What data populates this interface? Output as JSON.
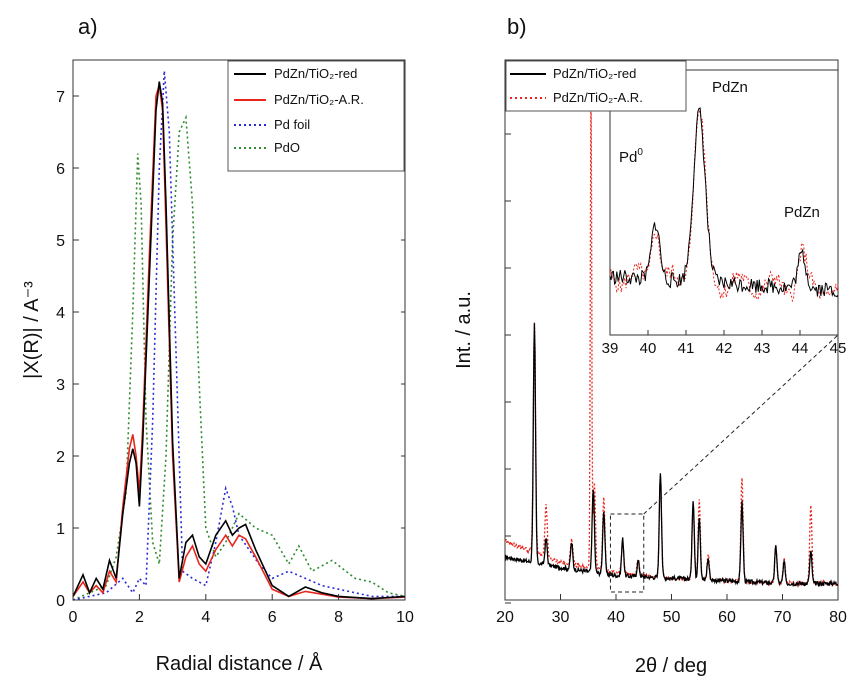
{
  "figure": {
    "panels": [
      {
        "label": "a)"
      },
      {
        "label": "b)"
      }
    ]
  },
  "chart_data": [
    {
      "type": "line",
      "panel": "a)",
      "title": "",
      "xlabel": "Radial distance / Å",
      "ylabel": "|X(R)| / A⁻³",
      "xlim": [
        0,
        10
      ],
      "ylim": [
        0,
        7.5
      ],
      "xticks": [
        "0",
        "2",
        "4",
        "6",
        "8",
        "10"
      ],
      "yticks": [
        "0",
        "1",
        "2",
        "3",
        "4",
        "5",
        "6",
        "7"
      ],
      "grid": false,
      "legend_position": "top-right",
      "series": [
        {
          "name": "PdZn/TiO₂-red",
          "color": "#000000",
          "style": "solid",
          "x": [
            0.0,
            0.3,
            0.5,
            0.7,
            0.9,
            1.1,
            1.3,
            1.5,
            1.7,
            1.8,
            1.9,
            2.0,
            2.1,
            2.3,
            2.5,
            2.6,
            2.7,
            2.8,
            3.0,
            3.2,
            3.4,
            3.6,
            3.8,
            4.0,
            4.3,
            4.6,
            4.8,
            5.0,
            5.2,
            5.5,
            6.0,
            6.5,
            7.0,
            7.5,
            8.0,
            9.0,
            10.0
          ],
          "y": [
            0.05,
            0.35,
            0.1,
            0.3,
            0.15,
            0.55,
            0.3,
            1.2,
            1.9,
            2.1,
            1.9,
            1.3,
            2.2,
            4.5,
            6.8,
            7.2,
            6.9,
            5.5,
            2.2,
            0.3,
            0.8,
            0.9,
            0.6,
            0.5,
            0.9,
            1.1,
            0.9,
            1.0,
            1.05,
            0.7,
            0.2,
            0.05,
            0.18,
            0.1,
            0.05,
            0.02,
            0.05
          ]
        },
        {
          "name": "PdZn/TiO₂-A.R.",
          "color": "#e8261e",
          "style": "solid",
          "x": [
            0.0,
            0.3,
            0.5,
            0.7,
            0.9,
            1.1,
            1.3,
            1.5,
            1.7,
            1.8,
            1.9,
            2.0,
            2.1,
            2.3,
            2.5,
            2.6,
            2.7,
            2.8,
            3.0,
            3.2,
            3.4,
            3.6,
            3.8,
            4.0,
            4.3,
            4.6,
            4.8,
            5.0,
            5.2,
            5.5,
            6.0,
            6.5,
            7.0,
            7.5,
            8.0,
            9.0,
            10.0
          ],
          "y": [
            0.05,
            0.25,
            0.1,
            0.2,
            0.1,
            0.4,
            0.25,
            1.3,
            2.1,
            2.3,
            2.0,
            1.5,
            2.4,
            4.8,
            7.0,
            7.15,
            6.8,
            5.2,
            2.0,
            0.25,
            0.6,
            0.75,
            0.5,
            0.4,
            0.7,
            0.9,
            0.75,
            0.9,
            0.85,
            0.6,
            0.15,
            0.05,
            0.12,
            0.08,
            0.04,
            0.02,
            0.04
          ]
        },
        {
          "name": "Pd foil",
          "color": "#2a2ad8",
          "style": "dotted",
          "x": [
            0.0,
            0.5,
            1.0,
            1.5,
            1.8,
            2.0,
            2.2,
            2.4,
            2.6,
            2.75,
            2.9,
            3.1,
            3.3,
            3.6,
            4.0,
            4.3,
            4.6,
            4.8,
            5.0,
            5.3,
            5.6,
            6.0,
            6.5,
            7.0,
            7.5,
            8.0,
            9.0,
            10.0
          ],
          "y": [
            0.0,
            0.05,
            0.1,
            0.3,
            0.1,
            0.3,
            0.2,
            2.5,
            6.0,
            7.35,
            6.5,
            3.5,
            0.4,
            0.3,
            0.2,
            0.8,
            1.55,
            1.3,
            0.9,
            0.7,
            0.5,
            0.3,
            0.4,
            0.3,
            0.2,
            0.15,
            0.05,
            0.05
          ]
        },
        {
          "name": "PdO",
          "color": "#2e8b2e",
          "style": "dotted",
          "x": [
            0.0,
            0.5,
            1.0,
            1.3,
            1.6,
            1.8,
            1.95,
            2.05,
            2.2,
            2.4,
            2.6,
            2.8,
            3.0,
            3.2,
            3.4,
            3.6,
            3.8,
            4.0,
            4.3,
            4.6,
            5.0,
            5.5,
            6.0,
            6.5,
            6.8,
            7.2,
            7.8,
            8.5,
            9.0,
            9.5,
            10.0
          ],
          "y": [
            0.0,
            0.1,
            0.2,
            0.6,
            1.5,
            4.0,
            6.2,
            5.5,
            2.5,
            0.8,
            0.5,
            2.0,
            5.0,
            6.5,
            6.7,
            5.5,
            3.0,
            1.0,
            0.6,
            0.8,
            1.2,
            1.0,
            0.9,
            0.5,
            0.75,
            0.4,
            0.55,
            0.3,
            0.25,
            0.1,
            0.05
          ]
        }
      ]
    },
    {
      "type": "line",
      "panel": "b)",
      "title": "",
      "xlabel": "2θ / deg",
      "ylabel": "Int. / a.u.",
      "xlim": [
        20,
        80
      ],
      "ylim": [
        0,
        1
      ],
      "xticks": [
        "20",
        "30",
        "40",
        "50",
        "60",
        "70",
        "80"
      ],
      "grid": false,
      "legend_position": "top-left",
      "series": [
        {
          "name": "PdZn/TiO₂-red",
          "color": "#000000",
          "style": "solid",
          "peaks": [
            [
              25.3,
              0.45
            ],
            [
              27.4,
              0.05
            ],
            [
              32.0,
              0.05
            ],
            [
              35.9,
              0.16
            ],
            [
              37.8,
              0.12
            ],
            [
              41.2,
              0.07
            ],
            [
              44.0,
              0.03
            ],
            [
              48.0,
              0.2
            ],
            [
              53.9,
              0.15
            ],
            [
              55.0,
              0.12
            ],
            [
              56.6,
              0.04
            ],
            [
              62.7,
              0.15
            ],
            [
              68.8,
              0.07
            ],
            [
              70.3,
              0.04
            ],
            [
              75.1,
              0.06
            ]
          ],
          "baseline": [
            [
              20,
              0.07
            ],
            [
              30,
              0.05
            ],
            [
              40,
              0.035
            ],
            [
              50,
              0.03
            ],
            [
              60,
              0.025
            ],
            [
              70,
              0.02
            ],
            [
              80,
              0.02
            ]
          ]
        },
        {
          "name": "PdZn/TiO₂-A.R.",
          "color": "#e8261e",
          "style": "dotted",
          "peaks": [
            [
              25.3,
              0.44
            ],
            [
              27.4,
              0.1
            ],
            [
              32.0,
              0.05
            ],
            [
              35.5,
              0.92
            ],
            [
              36.1,
              0.16
            ],
            [
              37.8,
              0.14
            ],
            [
              41.2,
              0.06
            ],
            [
              44.0,
              0.03
            ],
            [
              48.0,
              0.19
            ],
            [
              53.9,
              0.14
            ],
            [
              55.0,
              0.15
            ],
            [
              56.6,
              0.05
            ],
            [
              62.7,
              0.2
            ],
            [
              68.8,
              0.07
            ],
            [
              70.3,
              0.05
            ],
            [
              75.1,
              0.15
            ]
          ],
          "baseline": [
            [
              20,
              0.1
            ],
            [
              30,
              0.06
            ],
            [
              40,
              0.04
            ],
            [
              50,
              0.03
            ],
            [
              60,
              0.025
            ],
            [
              70,
              0.02
            ],
            [
              80,
              0.02
            ]
          ]
        }
      ],
      "zoom_box_x": [
        39,
        45
      ],
      "inset": {
        "xlim": [
          39,
          45
        ],
        "xticks": [
          "39",
          "40",
          "41",
          "42",
          "43",
          "44",
          "45"
        ],
        "annotations": [
          {
            "text": "PdZn",
            "x": 41.4
          },
          {
            "text": "Pd",
            "sup": "0",
            "x": 40.2
          },
          {
            "text": "PdZn",
            "x": 44.0
          }
        ],
        "peaks": [
          [
            40.2,
            0.25
          ],
          [
            41.35,
            0.75
          ],
          [
            44.05,
            0.15
          ]
        ]
      }
    }
  ]
}
